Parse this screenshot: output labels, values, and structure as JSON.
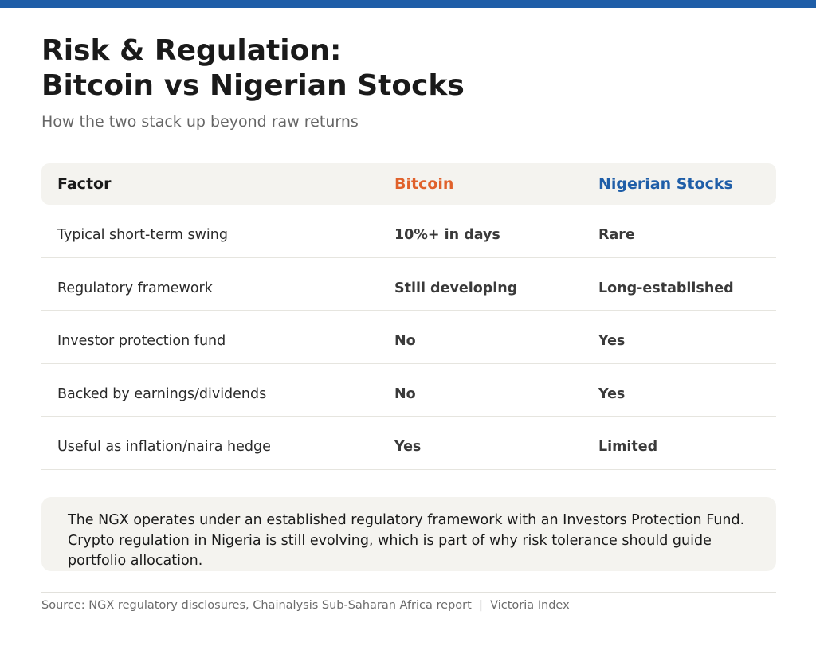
{
  "title": "Risk & Regulation:\nBitcoin vs Nigerian Stocks",
  "subtitle": "How the two stack up beyond raw returns",
  "colors": {
    "accent_bar": "#1f5ea8",
    "bitcoin": "#e0612b",
    "nigerian_stocks": "#1f5ea8"
  },
  "table": {
    "headers": {
      "factor": "Factor",
      "bitcoin": "Bitcoin",
      "stocks": "Nigerian Stocks"
    },
    "rows": [
      {
        "factor": "Typical short-term swing",
        "bitcoin": "10%+ in days",
        "stocks": "Rare"
      },
      {
        "factor": "Regulatory framework",
        "bitcoin": "Still developing",
        "stocks": "Long-established"
      },
      {
        "factor": "Investor protection fund",
        "bitcoin": "No",
        "stocks": "Yes"
      },
      {
        "factor": "Backed by earnings/dividends",
        "bitcoin": "No",
        "stocks": "Yes"
      },
      {
        "factor": "Useful as inflation/naira hedge",
        "bitcoin": "Yes",
        "stocks": "Limited"
      }
    ]
  },
  "note": "The NGX operates under an established regulatory framework with an Investors Protection Fund. Crypto regulation in Nigeria is still evolving, which is part of why risk tolerance should guide portfolio allocation.",
  "source": "Source: NGX regulatory disclosures, Chainalysis Sub-Saharan Africa report  |  Victoria Index"
}
